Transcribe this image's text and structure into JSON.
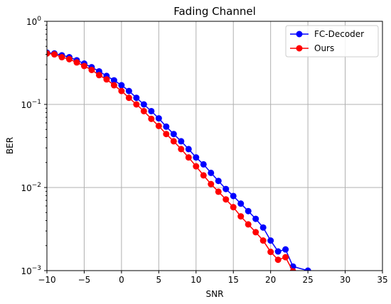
{
  "chart_data": {
    "type": "line",
    "title": "Fading Channel",
    "xlabel": "SNR",
    "ylabel": "BER",
    "xlim": [
      -10,
      35
    ],
    "ylim": [
      0.001,
      1
    ],
    "yscale": "log",
    "grid": true,
    "legend_position": "top-right",
    "xticks": [
      -10,
      -5,
      0,
      5,
      10,
      15,
      20,
      25,
      30,
      35
    ],
    "yticks": [
      {
        "value": 1,
        "base": "10",
        "exp": "0"
      },
      {
        "value": 0.1,
        "base": "10",
        "exp": "−1"
      },
      {
        "value": 0.01,
        "base": "10",
        "exp": "−2"
      },
      {
        "value": 0.001,
        "base": "10",
        "exp": "−3"
      }
    ],
    "series": [
      {
        "name": "FC-Decoder",
        "color": "#0000ff",
        "x": [
          -10,
          -9,
          -8,
          -7,
          -6,
          -5,
          -4,
          -3,
          -2,
          -1,
          0,
          1,
          2,
          3,
          4,
          5,
          6,
          7,
          8,
          9,
          10,
          11,
          12,
          13,
          14,
          15,
          16,
          17,
          18,
          19,
          20,
          21,
          22,
          23,
          25
        ],
        "y": [
          0.42,
          0.41,
          0.39,
          0.37,
          0.34,
          0.31,
          0.28,
          0.25,
          0.22,
          0.195,
          0.17,
          0.145,
          0.12,
          0.1,
          0.083,
          0.068,
          0.054,
          0.044,
          0.036,
          0.029,
          0.023,
          0.019,
          0.015,
          0.012,
          0.0096,
          0.0079,
          0.0064,
          0.0052,
          0.0042,
          0.0033,
          0.0023,
          0.0017,
          0.0018,
          0.00112,
          0.001
        ]
      },
      {
        "name": "Ours",
        "color": "#ff0000",
        "x": [
          -10,
          -9,
          -8,
          -7,
          -6,
          -5,
          -4,
          -3,
          -2,
          -1,
          0,
          1,
          2,
          3,
          4,
          5,
          6,
          7,
          8,
          9,
          10,
          11,
          12,
          13,
          14,
          15,
          16,
          17,
          18,
          19,
          20,
          21,
          22,
          23
        ],
        "y": [
          0.41,
          0.4,
          0.37,
          0.35,
          0.32,
          0.29,
          0.26,
          0.225,
          0.2,
          0.17,
          0.145,
          0.12,
          0.1,
          0.083,
          0.067,
          0.055,
          0.044,
          0.036,
          0.029,
          0.023,
          0.018,
          0.014,
          0.011,
          0.0089,
          0.0072,
          0.0058,
          0.0045,
          0.0036,
          0.0029,
          0.0023,
          0.00168,
          0.00135,
          0.00145,
          0.00098
        ]
      }
    ]
  }
}
